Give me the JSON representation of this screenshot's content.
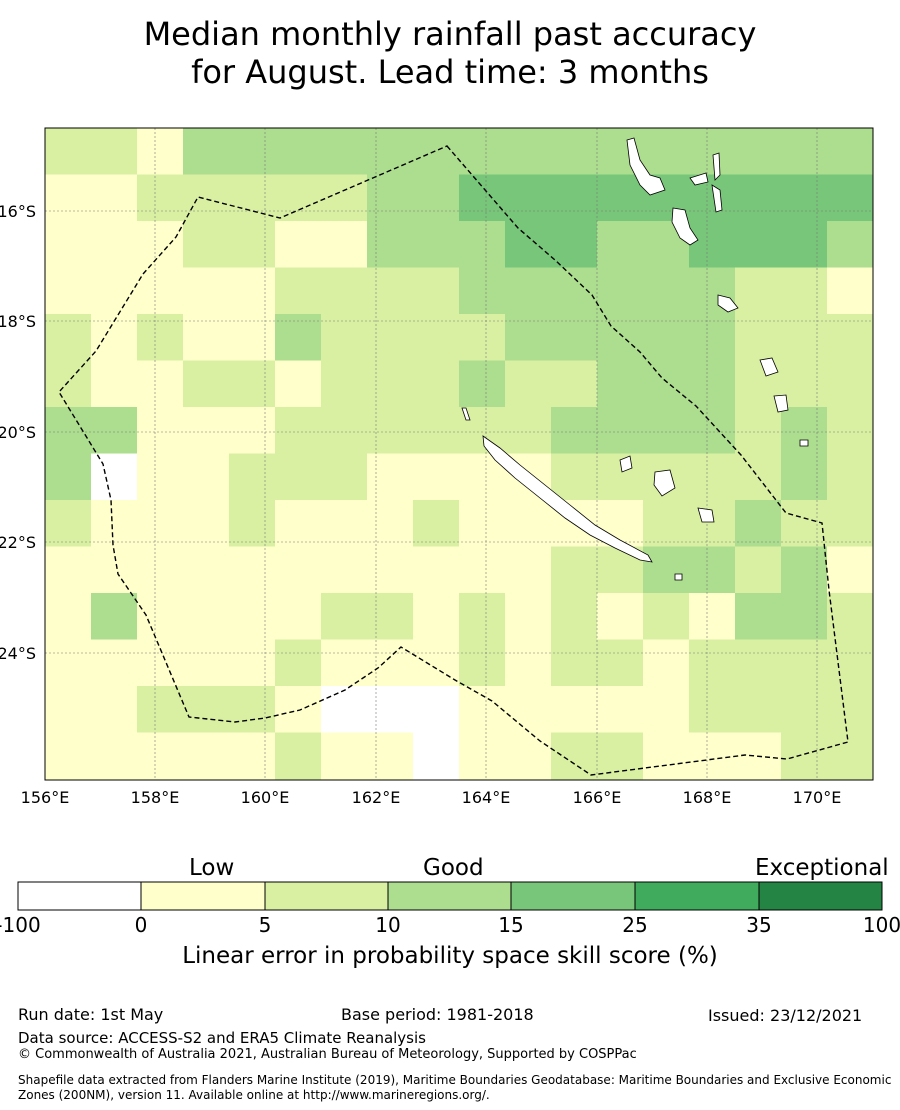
{
  "title": {
    "line1": "Median monthly rainfall past accuracy",
    "line2": "for August. Lead time: 3 months"
  },
  "map": {
    "lon_labels": [
      "156°E",
      "158°E",
      "160°E",
      "162°E",
      "164°E",
      "166°E",
      "168°E",
      "170°E"
    ],
    "lat_labels": [
      "16°S",
      "18°S",
      "20°S",
      "22°S",
      "24°S"
    ],
    "lon_range": [
      156,
      171
    ],
    "lat_range": [
      -26.6,
      -14.7
    ],
    "gridlines": true
  },
  "colorbar": {
    "category_labels": {
      "low": "Low",
      "good": "Good",
      "exceptional": "Exceptional"
    },
    "ticks": [
      "-100",
      "0",
      "5",
      "10",
      "15",
      "25",
      "35",
      "100"
    ],
    "colors": [
      "#ffffff",
      "#ffffcc",
      "#d9f0a3",
      "#addd8e",
      "#78c679",
      "#41ab5d",
      "#238443"
    ],
    "label": "Linear error in probability space skill score (%)"
  },
  "footer": {
    "run_date": "Run date: 1st May",
    "base_period": "Base period: 1981-2018",
    "issued": "Issued: 23/12/2021",
    "data_source": "Data source: ACCESS-S2 and ERA5 Climate Reanalysis",
    "copyright": "© Commonwealth of Australia 2021, Australian Bureau of Meteorology, Supported by COSPPac",
    "shapefile": "Shapefile data extracted from Flanders Marine Institute (2019), Maritime Boundaries Geodatabase: Maritime Boundaries and Exclusive Economic Zones (200NM), version 11. Available online at http://www.marineregions.org/."
  }
}
